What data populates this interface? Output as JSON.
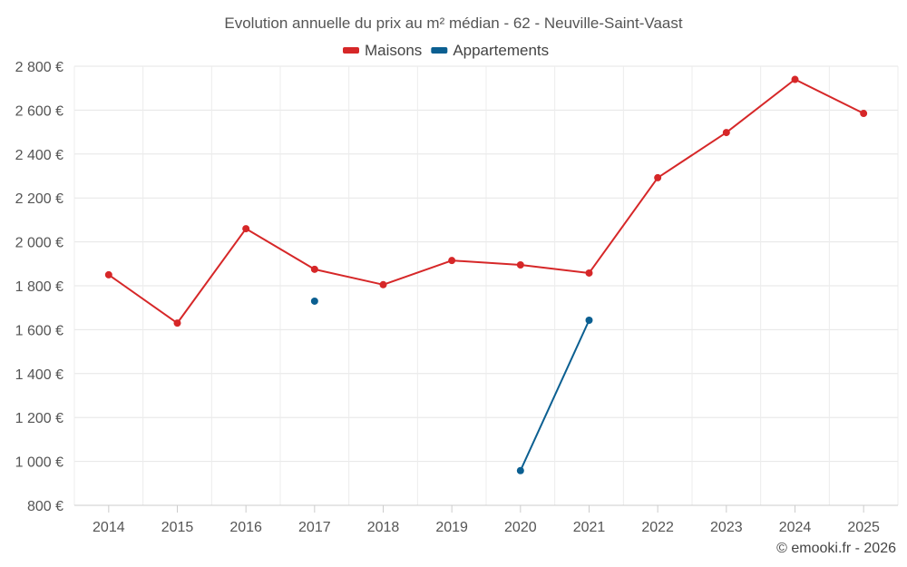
{
  "chart_data": {
    "type": "line",
    "title": "Evolution annuelle du prix au m² médian - 62 - Neuville-Saint-Vaast",
    "categories": [
      "2014",
      "2015",
      "2016",
      "2017",
      "2018",
      "2019",
      "2020",
      "2021",
      "2022",
      "2023",
      "2024",
      "2025"
    ],
    "ylim": [
      800,
      2800
    ],
    "yticks": [
      800,
      1000,
      1200,
      1400,
      1600,
      1800,
      2000,
      2200,
      2400,
      2600,
      2800
    ],
    "ytick_labels": [
      "800 €",
      "1 000 €",
      "1 200 €",
      "1 400 €",
      "1 600 €",
      "1 800 €",
      "2 000 €",
      "2 200 €",
      "2 400 €",
      "2 600 €",
      "2 800 €"
    ],
    "grid": true,
    "legend_position": "top-center",
    "series": [
      {
        "name": "Maisons",
        "color": "#d62728",
        "values": [
          1850,
          1630,
          2060,
          1875,
          1805,
          1915,
          1895,
          1858,
          2292,
          2498,
          2740,
          2585
        ]
      },
      {
        "name": "Appartements",
        "color": "#0b5f91",
        "values": [
          null,
          null,
          null,
          1730,
          null,
          null,
          958,
          1643,
          null,
          null,
          null,
          null
        ]
      }
    ],
    "credit": "© emooki.fr - 2026"
  }
}
